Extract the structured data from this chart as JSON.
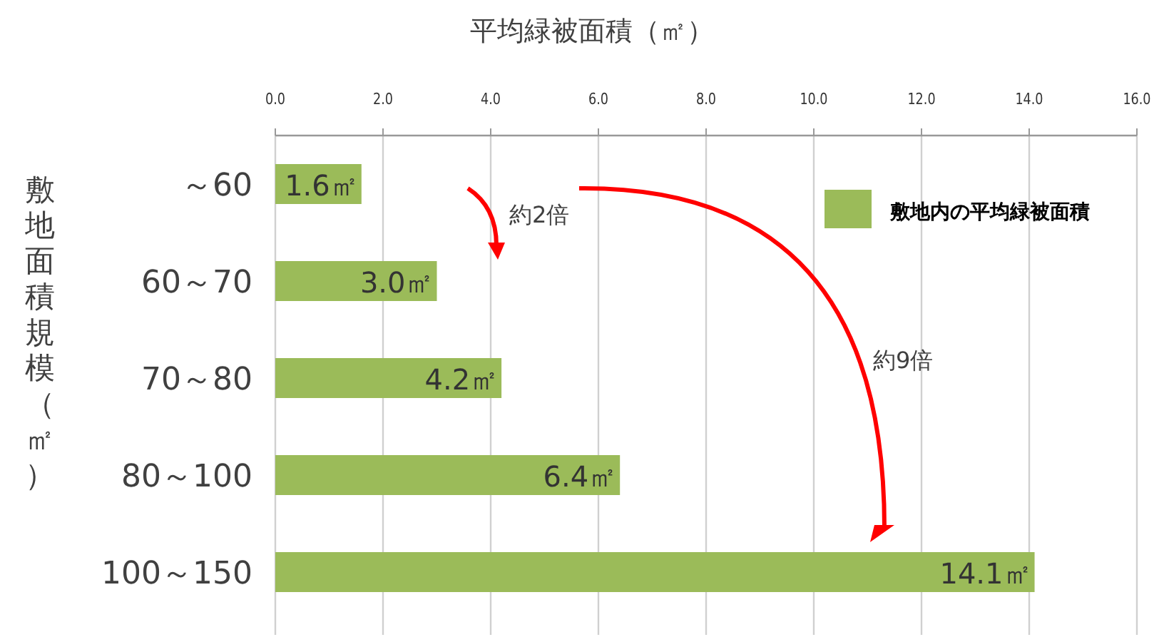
{
  "chart_data": {
    "type": "bar",
    "orientation": "horizontal",
    "xlabel": "平均緑被面積（㎡）",
    "ylabel": "敷地面積規模（㎡）",
    "categories": [
      "～60",
      "60～70",
      "70～80",
      "80～100",
      "100～150"
    ],
    "series": [
      {
        "name": "敷地内の平均緑被面積",
        "color": "#9bbb59",
        "values": [
          1.6,
          3.0,
          4.2,
          6.4,
          14.1
        ],
        "value_labels": [
          "1.6㎡",
          "3.0㎡",
          "4.2㎡",
          "6.4㎡",
          "14.1㎡"
        ]
      }
    ],
    "xlim": [
      0,
      16
    ],
    "xticks": [
      {
        "value": 0,
        "label": "0.0"
      },
      {
        "value": 2,
        "label": "2.0"
      },
      {
        "value": 4,
        "label": "4.0"
      },
      {
        "value": 6,
        "label": "6.0"
      },
      {
        "value": 8,
        "label": "8.0"
      },
      {
        "value": 10,
        "label": "10.0"
      },
      {
        "value": 12,
        "label": "12.0"
      },
      {
        "value": 14,
        "label": "14.0"
      },
      {
        "value": 16,
        "label": "16.0"
      }
    ],
    "grid": "x",
    "legend": "top right",
    "annotations": [
      "約2倍",
      "約9倍"
    ]
  }
}
